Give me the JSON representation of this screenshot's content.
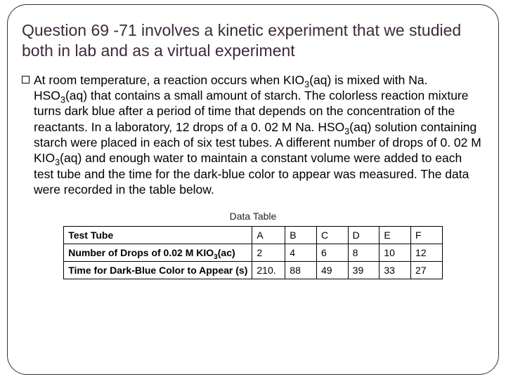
{
  "heading": "Question 69 -71 involves a kinetic experiment that we studied both in lab and as a virtual experiment",
  "body": {
    "prefix": "At room temperature, a reaction occurs when KIO",
    "sub1": "3",
    "seg1": "(aq) is mixed with Na. HSO",
    "sub2": "3",
    "seg2": "(aq) that contains a small amount of starch. The colorless reaction mixture turns dark blue after a period of time that depends on the concentration of the reactants. In a laboratory, 12 drops of a 0. 02 M Na. HSO",
    "sub3": "3",
    "seg3": "(aq) solution containing starch were placed in each of six test tubes. A different number of drops of 0. 02 M KIO",
    "sub4": "3",
    "seg4": "(aq) and enough water to maintain a constant volume were added to each test tube and the time for the dark-blue color to appear was measured. The data were recorded in the table below."
  },
  "table": {
    "title": "Data Table",
    "row1": {
      "label": "Test Tube",
      "values": [
        "A",
        "B",
        "C",
        "D",
        "E",
        "F"
      ]
    },
    "row2": {
      "label_pre": "Number of Drops of 0.02 M KIO",
      "label_sub": "3",
      "label_post": "(ac)",
      "values": [
        "2",
        "4",
        "6",
        "8",
        "10",
        "12"
      ]
    },
    "row3": {
      "label": "Time for Dark-Blue Color to Appear (s)",
      "values": [
        "210.",
        "88",
        "49",
        "39",
        "33",
        "27"
      ]
    }
  }
}
